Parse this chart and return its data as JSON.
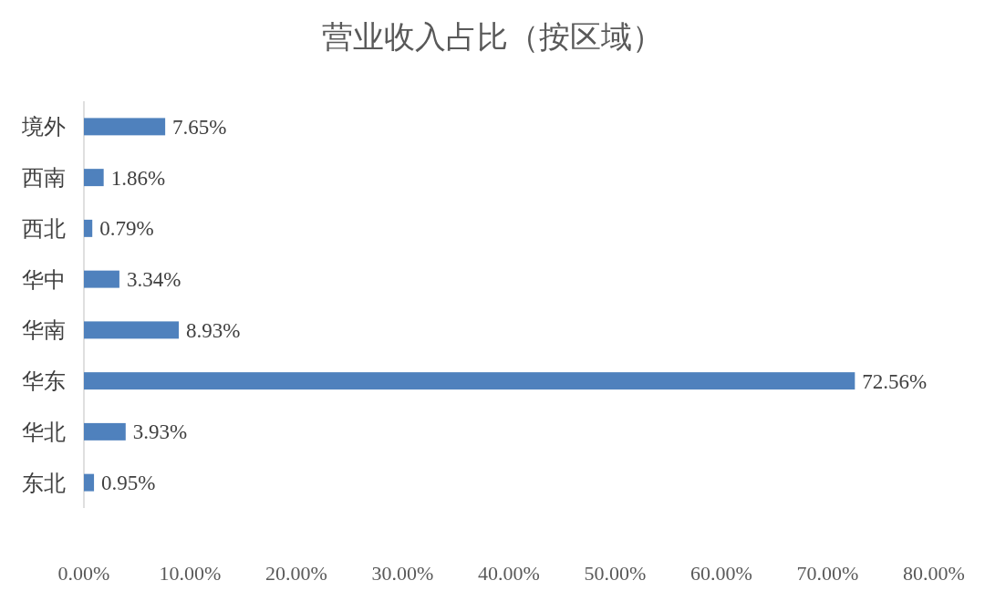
{
  "chart_data": {
    "type": "bar",
    "orientation": "horizontal",
    "title": "营业收入占比（按区域）",
    "categories": [
      "境外",
      "西南",
      "西北",
      "华中",
      "华南",
      "华东",
      "华北",
      "东北"
    ],
    "values": [
      7.65,
      1.86,
      0.79,
      3.34,
      8.93,
      72.56,
      3.93,
      0.95
    ],
    "value_labels": [
      "7.65%",
      "1.86%",
      "0.79%",
      "3.34%",
      "8.93%",
      "72.56%",
      "3.93%",
      "0.95%"
    ],
    "color": "#4f81bd",
    "xlim": [
      0,
      80
    ],
    "xticks": [
      {
        "value": 0,
        "label": "0.00%"
      },
      {
        "value": 10,
        "label": "10.00%"
      },
      {
        "value": 20,
        "label": "20.00%"
      },
      {
        "value": 30,
        "label": "30.00%"
      },
      {
        "value": 40,
        "label": "40.00%"
      },
      {
        "value": 50,
        "label": "50.00%"
      },
      {
        "value": 60,
        "label": "60.00%"
      },
      {
        "value": 70,
        "label": "70.00%"
      },
      {
        "value": 80,
        "label": "80.00%"
      }
    ],
    "grid": false
  }
}
